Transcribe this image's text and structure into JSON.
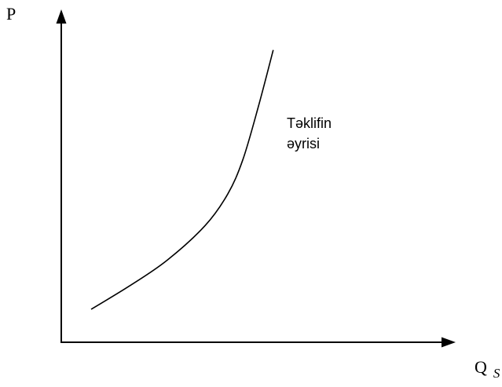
{
  "chart_data": {
    "type": "line",
    "ylabel": "P",
    "xlabel": {
      "main": "Q",
      "subscript": "S"
    },
    "annotation": {
      "line1": "Təklifin",
      "line2": "əyrisi"
    },
    "series": [
      {
        "points": [
          [
            0.0,
            0.0
          ],
          [
            1.0,
            0.8
          ],
          [
            2.0,
            1.7
          ],
          [
            3.0,
            2.9
          ],
          [
            3.6,
            4.0
          ],
          [
            4.0,
            5.2
          ],
          [
            4.4,
            7.0
          ],
          [
            4.8,
            9.0
          ]
        ]
      }
    ]
  }
}
